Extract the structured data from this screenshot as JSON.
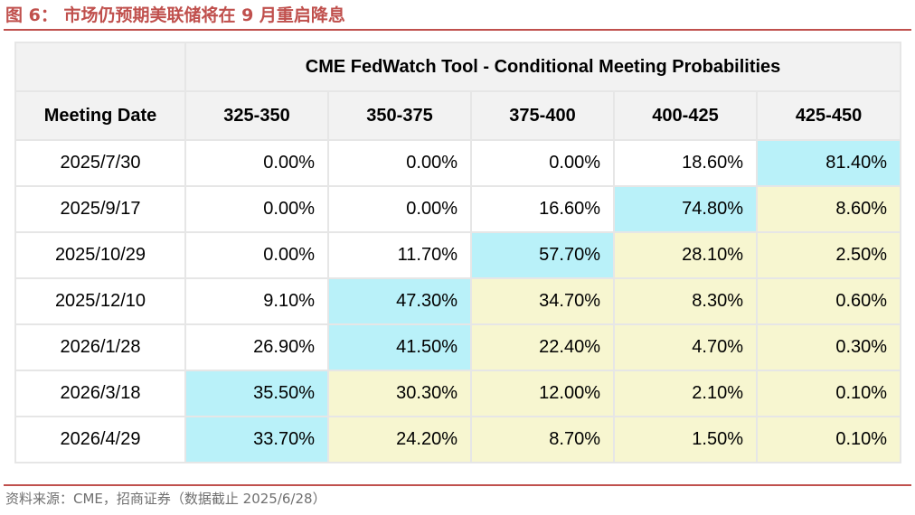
{
  "figure": {
    "title": "图 6：  市场仍预期美联储将在 9 月重启降息",
    "source": "资料来源：CME，招商证券（数据截止 2025/6/28）"
  },
  "chart_data": {
    "type": "table",
    "title": "CME FedWatch Tool - Conditional Meeting Probabilities",
    "row_header": "Meeting Date",
    "columns": [
      "325-350",
      "350-375",
      "375-400",
      "400-425",
      "425-450"
    ],
    "rows": [
      {
        "date": "2025/7/30",
        "values": [
          "0.00%",
          "0.00%",
          "0.00%",
          "18.60%",
          "81.40%"
        ],
        "shade": [
          "white",
          "white",
          "white",
          "white",
          "blue"
        ]
      },
      {
        "date": "2025/9/17",
        "values": [
          "0.00%",
          "0.00%",
          "16.60%",
          "74.80%",
          "8.60%"
        ],
        "shade": [
          "white",
          "white",
          "white",
          "blue",
          "yellow"
        ]
      },
      {
        "date": "2025/10/29",
        "values": [
          "0.00%",
          "11.70%",
          "57.70%",
          "28.10%",
          "2.50%"
        ],
        "shade": [
          "white",
          "white",
          "blue",
          "yellow",
          "yellow"
        ]
      },
      {
        "date": "2025/12/10",
        "values": [
          "9.10%",
          "47.30%",
          "34.70%",
          "8.30%",
          "0.60%"
        ],
        "shade": [
          "white",
          "blue",
          "yellow",
          "yellow",
          "yellow"
        ]
      },
      {
        "date": "2026/1/28",
        "values": [
          "26.90%",
          "41.50%",
          "22.40%",
          "4.70%",
          "0.30%"
        ],
        "shade": [
          "white",
          "blue",
          "yellow",
          "yellow",
          "yellow"
        ]
      },
      {
        "date": "2026/3/18",
        "values": [
          "35.50%",
          "30.30%",
          "12.00%",
          "2.10%",
          "0.10%"
        ],
        "shade": [
          "blue",
          "yellow",
          "yellow",
          "yellow",
          "yellow"
        ]
      },
      {
        "date": "2026/4/29",
        "values": [
          "33.70%",
          "24.20%",
          "8.70%",
          "1.50%",
          "0.10%"
        ],
        "shade": [
          "blue",
          "yellow",
          "yellow",
          "yellow",
          "yellow"
        ]
      }
    ]
  },
  "colors": {
    "accent": "#c0504d",
    "highlight_max": "#b9f1f9",
    "highlight_other": "#f7f6d0",
    "header_bg": "#f2f2f2"
  }
}
